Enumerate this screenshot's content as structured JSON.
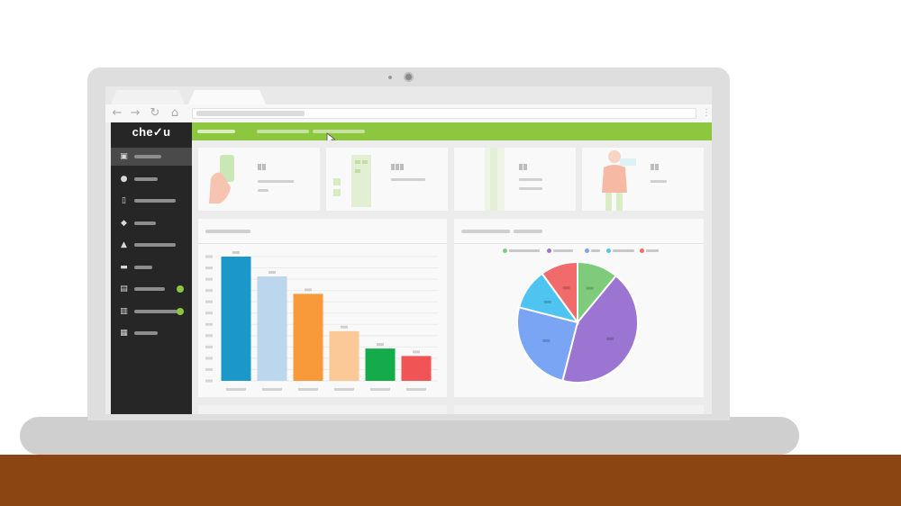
{
  "app": {
    "brand": "che✓u",
    "colors": {
      "floor": "#8b4513",
      "brand_green": "#8dc63f",
      "sidebar_bg": "#262626"
    }
  },
  "browser": {
    "nav_icons": [
      "back-arrow-icon",
      "forward-arrow-icon",
      "reload-icon",
      "home-icon"
    ],
    "back_glyph": "←",
    "forward_glyph": "→",
    "reload_glyph": "↻",
    "home_glyph": "⌂",
    "menu_glyph": "⋮"
  },
  "sidebar": {
    "items": [
      {
        "icon": "dashboard-icon",
        "glyph": "▣",
        "active": true,
        "badge": false
      },
      {
        "icon": "location-pin-icon",
        "glyph": "●",
        "active": false,
        "badge": false
      },
      {
        "icon": "phone-icon",
        "glyph": "▯",
        "active": false,
        "badge": false
      },
      {
        "icon": "users-icon",
        "glyph": "◆",
        "active": false,
        "badge": false
      },
      {
        "icon": "network-icon",
        "glyph": "▲",
        "active": false,
        "badge": false
      },
      {
        "icon": "card-icon",
        "glyph": "▬",
        "active": false,
        "badge": false
      },
      {
        "icon": "clipboard-icon",
        "glyph": "▤",
        "active": false,
        "badge": true
      },
      {
        "icon": "database-icon",
        "glyph": "▥",
        "active": false,
        "badge": true
      },
      {
        "icon": "report-icon",
        "glyph": "▦",
        "active": false,
        "badge": false
      }
    ]
  },
  "chart_data": [
    {
      "type": "bar",
      "categories": [
        "",
        "",
        "",
        "",
        "",
        ""
      ],
      "values": [
        100,
        84,
        70,
        40,
        26,
        20
      ],
      "colors": [
        "#1b98c9",
        "#bcd6ee",
        "#f89a39",
        "#fbc997",
        "#14ab4a",
        "#f05454"
      ],
      "ylim": [
        0,
        100
      ],
      "grid": true
    },
    {
      "type": "pie",
      "values": [
        11,
        43,
        25,
        11,
        10
      ],
      "colors": [
        "#7fcb7c",
        "#9c75d2",
        "#7aa4f4",
        "#4fc4f0",
        "#f26b6b"
      ],
      "legend_position": "top"
    }
  ]
}
